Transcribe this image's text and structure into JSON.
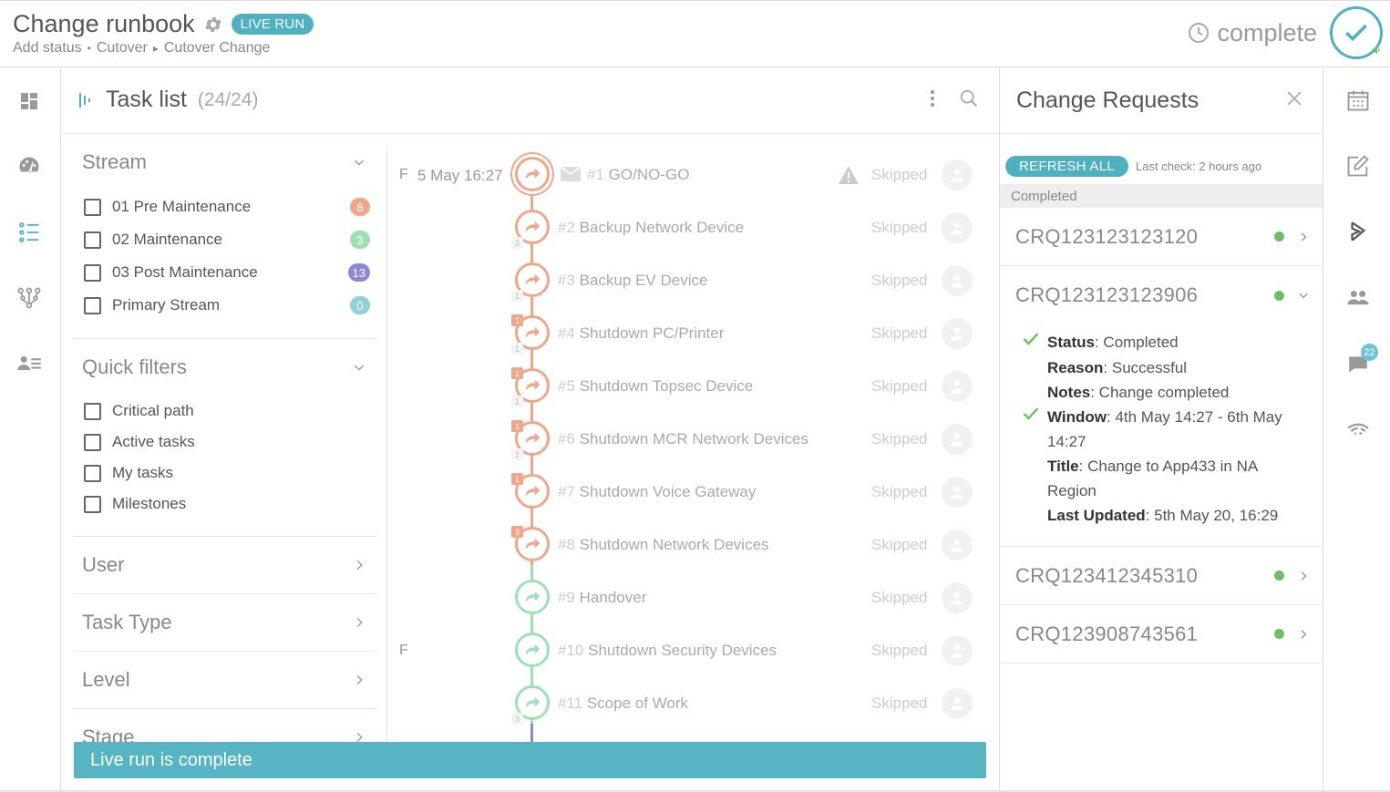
{
  "header": {
    "title": "Change runbook",
    "badge": "LIVE RUN",
    "add_status": "Add status",
    "breadcrumb": [
      "Cutover",
      "Cutover Change"
    ],
    "status_text": "complete"
  },
  "tasklist": {
    "title": "Task list",
    "count": "(24/24)"
  },
  "filters": {
    "stream": {
      "title": "Stream",
      "items": [
        {
          "label": "01 Pre Maintenance",
          "count": "8",
          "color": "#f0a68a"
        },
        {
          "label": "02 Maintenance",
          "count": "3",
          "color": "#9de0b4"
        },
        {
          "label": "03 Post Maintenance",
          "count": "13",
          "color": "#8c88d8"
        },
        {
          "label": "Primary Stream",
          "count": "0",
          "color": "#8fd0dc"
        }
      ]
    },
    "quick": {
      "title": "Quick filters",
      "items": [
        "Critical path",
        "Active tasks",
        "My tasks",
        "Milestones"
      ]
    },
    "collapsed": [
      "User",
      "Task Type",
      "Level",
      "Stage"
    ]
  },
  "tasks": [
    {
      "phase": "F",
      "date": "5 May 16:27",
      "num": "#1",
      "name": "GO/NO-GO",
      "status": "Skipped",
      "color": "#f0a68a"
    },
    {
      "phase": "",
      "date": "",
      "num": "#2",
      "name": "Backup Network Device",
      "status": "Skipped",
      "color": "#f0a68a"
    },
    {
      "phase": "",
      "date": "",
      "num": "#3",
      "name": "Backup EV Device",
      "status": "Skipped",
      "color": "#f0a68a"
    },
    {
      "phase": "",
      "date": "",
      "num": "#4",
      "name": "Shutdown PC/Printer",
      "status": "Skipped",
      "color": "#f0a68a"
    },
    {
      "phase": "",
      "date": "",
      "num": "#5",
      "name": "Shutdown Topsec Device",
      "status": "Skipped",
      "color": "#f0a68a"
    },
    {
      "phase": "",
      "date": "",
      "num": "#6",
      "name": "Shutdown MCR Network Devices",
      "status": "Skipped",
      "color": "#f0a68a"
    },
    {
      "phase": "",
      "date": "",
      "num": "#7",
      "name": "Shutdown Voice Gateway",
      "status": "Skipped",
      "color": "#f0a68a"
    },
    {
      "phase": "",
      "date": "",
      "num": "#8",
      "name": "Shutdown Network Devices",
      "status": "Skipped",
      "color": "#f0a68a"
    },
    {
      "phase": "",
      "date": "",
      "num": "#9",
      "name": "Handover",
      "status": "Skipped",
      "color": "#9de0b4"
    },
    {
      "phase": "F",
      "date": "",
      "num": "#10",
      "name": "Shutdown Security Devices",
      "status": "Skipped",
      "color": "#9de0b4"
    },
    {
      "phase": "",
      "date": "",
      "num": "#11",
      "name": "Scope of Work",
      "status": "Skipped",
      "color": "#9de0b4"
    }
  ],
  "task_badges": {
    "row2_bottom": "3",
    "row3_bottom": "1",
    "row4_top": "1",
    "row4_bottom": "1",
    "row5_top": "1",
    "row5_bottom": "1",
    "row6_top": "1",
    "row6_bottom": "1",
    "row7_top": "1",
    "row8_top": "3",
    "row11_bottom": "3"
  },
  "livebar": "Live run is complete",
  "change_requests": {
    "title": "Change Requests",
    "refresh": "REFRESH ALL",
    "last_check": "Last check: 2 hours ago",
    "group": "Completed",
    "items": [
      {
        "id": "CRQ123123123120"
      },
      {
        "id": "CRQ123123123906"
      },
      {
        "id": "CRQ123412345310"
      },
      {
        "id": "CRQ123908743561"
      }
    ],
    "detail": {
      "status_label": "Status",
      "status_value": ": Completed",
      "reason_label": "Reason",
      "reason_value": ": Successful",
      "notes_label": "Notes",
      "notes_value": ": Change completed",
      "window_label": "Window",
      "window_value": ": 4th May 14:27 - 6th May 14:27",
      "title_label": "Title",
      "title_value": ": Change to App433 in NA Region",
      "updated_label": "Last Updated",
      "updated_value": ": 5th May 20, 16:29"
    }
  },
  "right_rail": {
    "chat_count": "22"
  },
  "colors": {
    "accent": "#4fb0bf",
    "pre": "#f0a68a",
    "maint": "#9de0b4",
    "post": "#8c88d8",
    "success": "#6cbf68"
  }
}
